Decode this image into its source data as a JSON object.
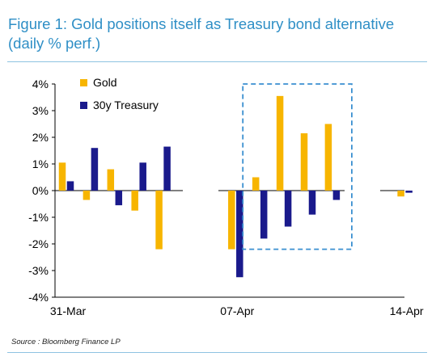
{
  "title": "Figure 1: Gold positions itself as Treasury bond alternative (daily % perf.)",
  "source": "Source : Bloomberg Finance LP",
  "chart_data": {
    "type": "bar",
    "ylim": [
      -4,
      4
    ],
    "yticks": [
      {
        "value": 4,
        "label": "4%"
      },
      {
        "value": 3,
        "label": "3%"
      },
      {
        "value": 2,
        "label": "2%"
      },
      {
        "value": 1,
        "label": "1%"
      },
      {
        "value": 0,
        "label": "0%"
      },
      {
        "value": -1,
        "label": "-1%"
      },
      {
        "value": -2,
        "label": "-2%"
      },
      {
        "value": -3,
        "label": "-3%"
      },
      {
        "value": -4,
        "label": "-4%"
      }
    ],
    "x": [
      "31-Mar",
      "01-Apr",
      "02-Apr",
      "03-Apr",
      "04-Apr",
      "05-Apr",
      "06-Apr",
      "07-Apr",
      "08-Apr",
      "09-Apr",
      "10-Apr",
      "11-Apr",
      "12-Apr",
      "13-Apr",
      "14-Apr"
    ],
    "xtick_labels": [
      {
        "x": "31-Mar",
        "label": "31-Mar"
      },
      {
        "x": "07-Apr",
        "label": "07-Apr"
      },
      {
        "x": "14-Apr",
        "label": "14-Apr"
      }
    ],
    "series": [
      {
        "name": "Gold",
        "color": "#f7b500",
        "values": [
          1.05,
          -0.35,
          0.8,
          -0.75,
          -2.2,
          null,
          null,
          -2.2,
          0.5,
          3.55,
          2.15,
          2.5,
          null,
          null,
          -0.22
        ]
      },
      {
        "name": "30y Treasury",
        "color": "#1a1a8c",
        "values": [
          0.35,
          1.6,
          -0.55,
          1.05,
          1.65,
          null,
          null,
          -3.25,
          -1.8,
          -1.35,
          -0.9,
          -0.35,
          null,
          null,
          -0.08
        ]
      }
    ],
    "legend_position": "top-left",
    "annotation": {
      "type": "dashed-box",
      "from": "08-Apr",
      "to": "11-Apr",
      "color": "#3a8fd0"
    },
    "grid": false
  }
}
